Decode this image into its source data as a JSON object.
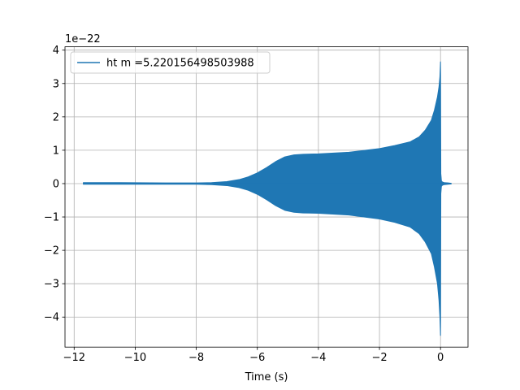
{
  "chart_data": {
    "type": "line",
    "title": "",
    "xlabel": "Time (s)",
    "ylabel": "",
    "y_offset_label": "1e−22",
    "xlim": [
      -12.3,
      0.9
    ],
    "ylim": [
      -4.9,
      4.1
    ],
    "y_scale_factor": 1e-22,
    "x_ticks": [
      -12,
      -10,
      -8,
      -6,
      -4,
      -2,
      0
    ],
    "x_tick_labels": [
      "−12",
      "−10",
      "−8",
      "−6",
      "−4",
      "−2",
      "0"
    ],
    "y_ticks": [
      -4,
      -3,
      -2,
      -1,
      0,
      1,
      2,
      3,
      4
    ],
    "y_tick_labels": [
      "−4",
      "−3",
      "−2",
      "−1",
      "0",
      "1",
      "2",
      "3",
      "4"
    ],
    "grid": true,
    "legend_position": "top-left",
    "series": [
      {
        "name": "ht m =5.220156498503988",
        "color": "#1f77b4",
        "x": [
          -11.7,
          -10.5,
          -9,
          -8,
          -7.5,
          -7,
          -6.6,
          -6.3,
          -6,
          -5.7,
          -5.4,
          -5.1,
          -4.8,
          -4.5,
          -4,
          -3,
          -2,
          -1.5,
          -1,
          -0.7,
          -0.5,
          -0.3,
          -0.2,
          -0.1,
          -0.05,
          -0.02,
          0,
          0.01,
          0.03,
          0.06,
          0.12,
          0.25,
          0.35
        ],
        "upper": [
          0.03,
          0.03,
          0.02,
          0.02,
          0.03,
          0.06,
          0.12,
          0.2,
          0.32,
          0.48,
          0.66,
          0.8,
          0.86,
          0.88,
          0.89,
          0.94,
          1.05,
          1.14,
          1.25,
          1.4,
          1.6,
          1.9,
          2.2,
          2.6,
          2.9,
          3.2,
          3.65,
          0.3,
          0.08,
          0.05,
          0.03,
          0.02,
          0.01
        ],
        "lower": [
          -0.02,
          -0.02,
          -0.02,
          -0.02,
          -0.03,
          -0.06,
          -0.12,
          -0.2,
          -0.32,
          -0.48,
          -0.66,
          -0.8,
          -0.86,
          -0.88,
          -0.89,
          -0.94,
          -1.06,
          -1.16,
          -1.3,
          -1.5,
          -1.75,
          -2.1,
          -2.5,
          -3.0,
          -3.5,
          -4.0,
          -4.55,
          -0.3,
          -0.08,
          -0.05,
          -0.03,
          -0.02,
          -0.01
        ]
      }
    ]
  }
}
